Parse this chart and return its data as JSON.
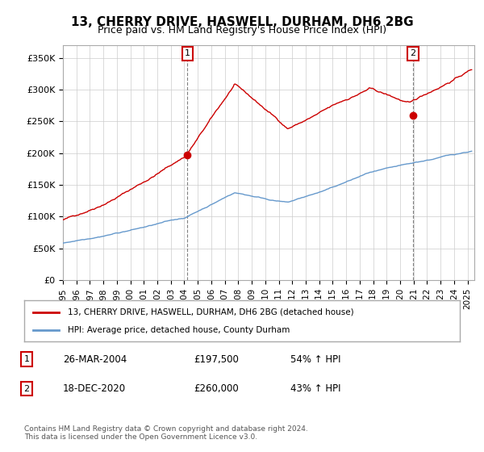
{
  "title": "13, CHERRY DRIVE, HASWELL, DURHAM, DH6 2BG",
  "subtitle": "Price paid vs. HM Land Registry's House Price Index (HPI)",
  "ylabel_ticks": [
    "£0",
    "£50K",
    "£100K",
    "£150K",
    "£200K",
    "£250K",
    "£300K",
    "£350K"
  ],
  "ytick_values": [
    0,
    50000,
    100000,
    150000,
    200000,
    250000,
    300000,
    350000
  ],
  "ylim": [
    0,
    370000
  ],
  "xlim_start": 1995.0,
  "xlim_end": 2025.5,
  "red_color": "#cc0000",
  "blue_color": "#6699cc",
  "marker1_date": 2004.23,
  "marker1_value": 197500,
  "marker2_date": 2020.96,
  "marker2_value": 260000,
  "legend_line1": "13, CHERRY DRIVE, HASWELL, DURHAM, DH6 2BG (detached house)",
  "legend_line2": "HPI: Average price, detached house, County Durham",
  "table_row1_num": "1",
  "table_row1_date": "26-MAR-2004",
  "table_row1_price": "£197,500",
  "table_row1_hpi": "54% ↑ HPI",
  "table_row2_num": "2",
  "table_row2_date": "18-DEC-2020",
  "table_row2_price": "£260,000",
  "table_row2_hpi": "43% ↑ HPI",
  "footer": "Contains HM Land Registry data © Crown copyright and database right 2024.\nThis data is licensed under the Open Government Licence v3.0.",
  "background_color": "#ffffff",
  "plot_bg_color": "#ffffff",
  "grid_color": "#cccccc"
}
